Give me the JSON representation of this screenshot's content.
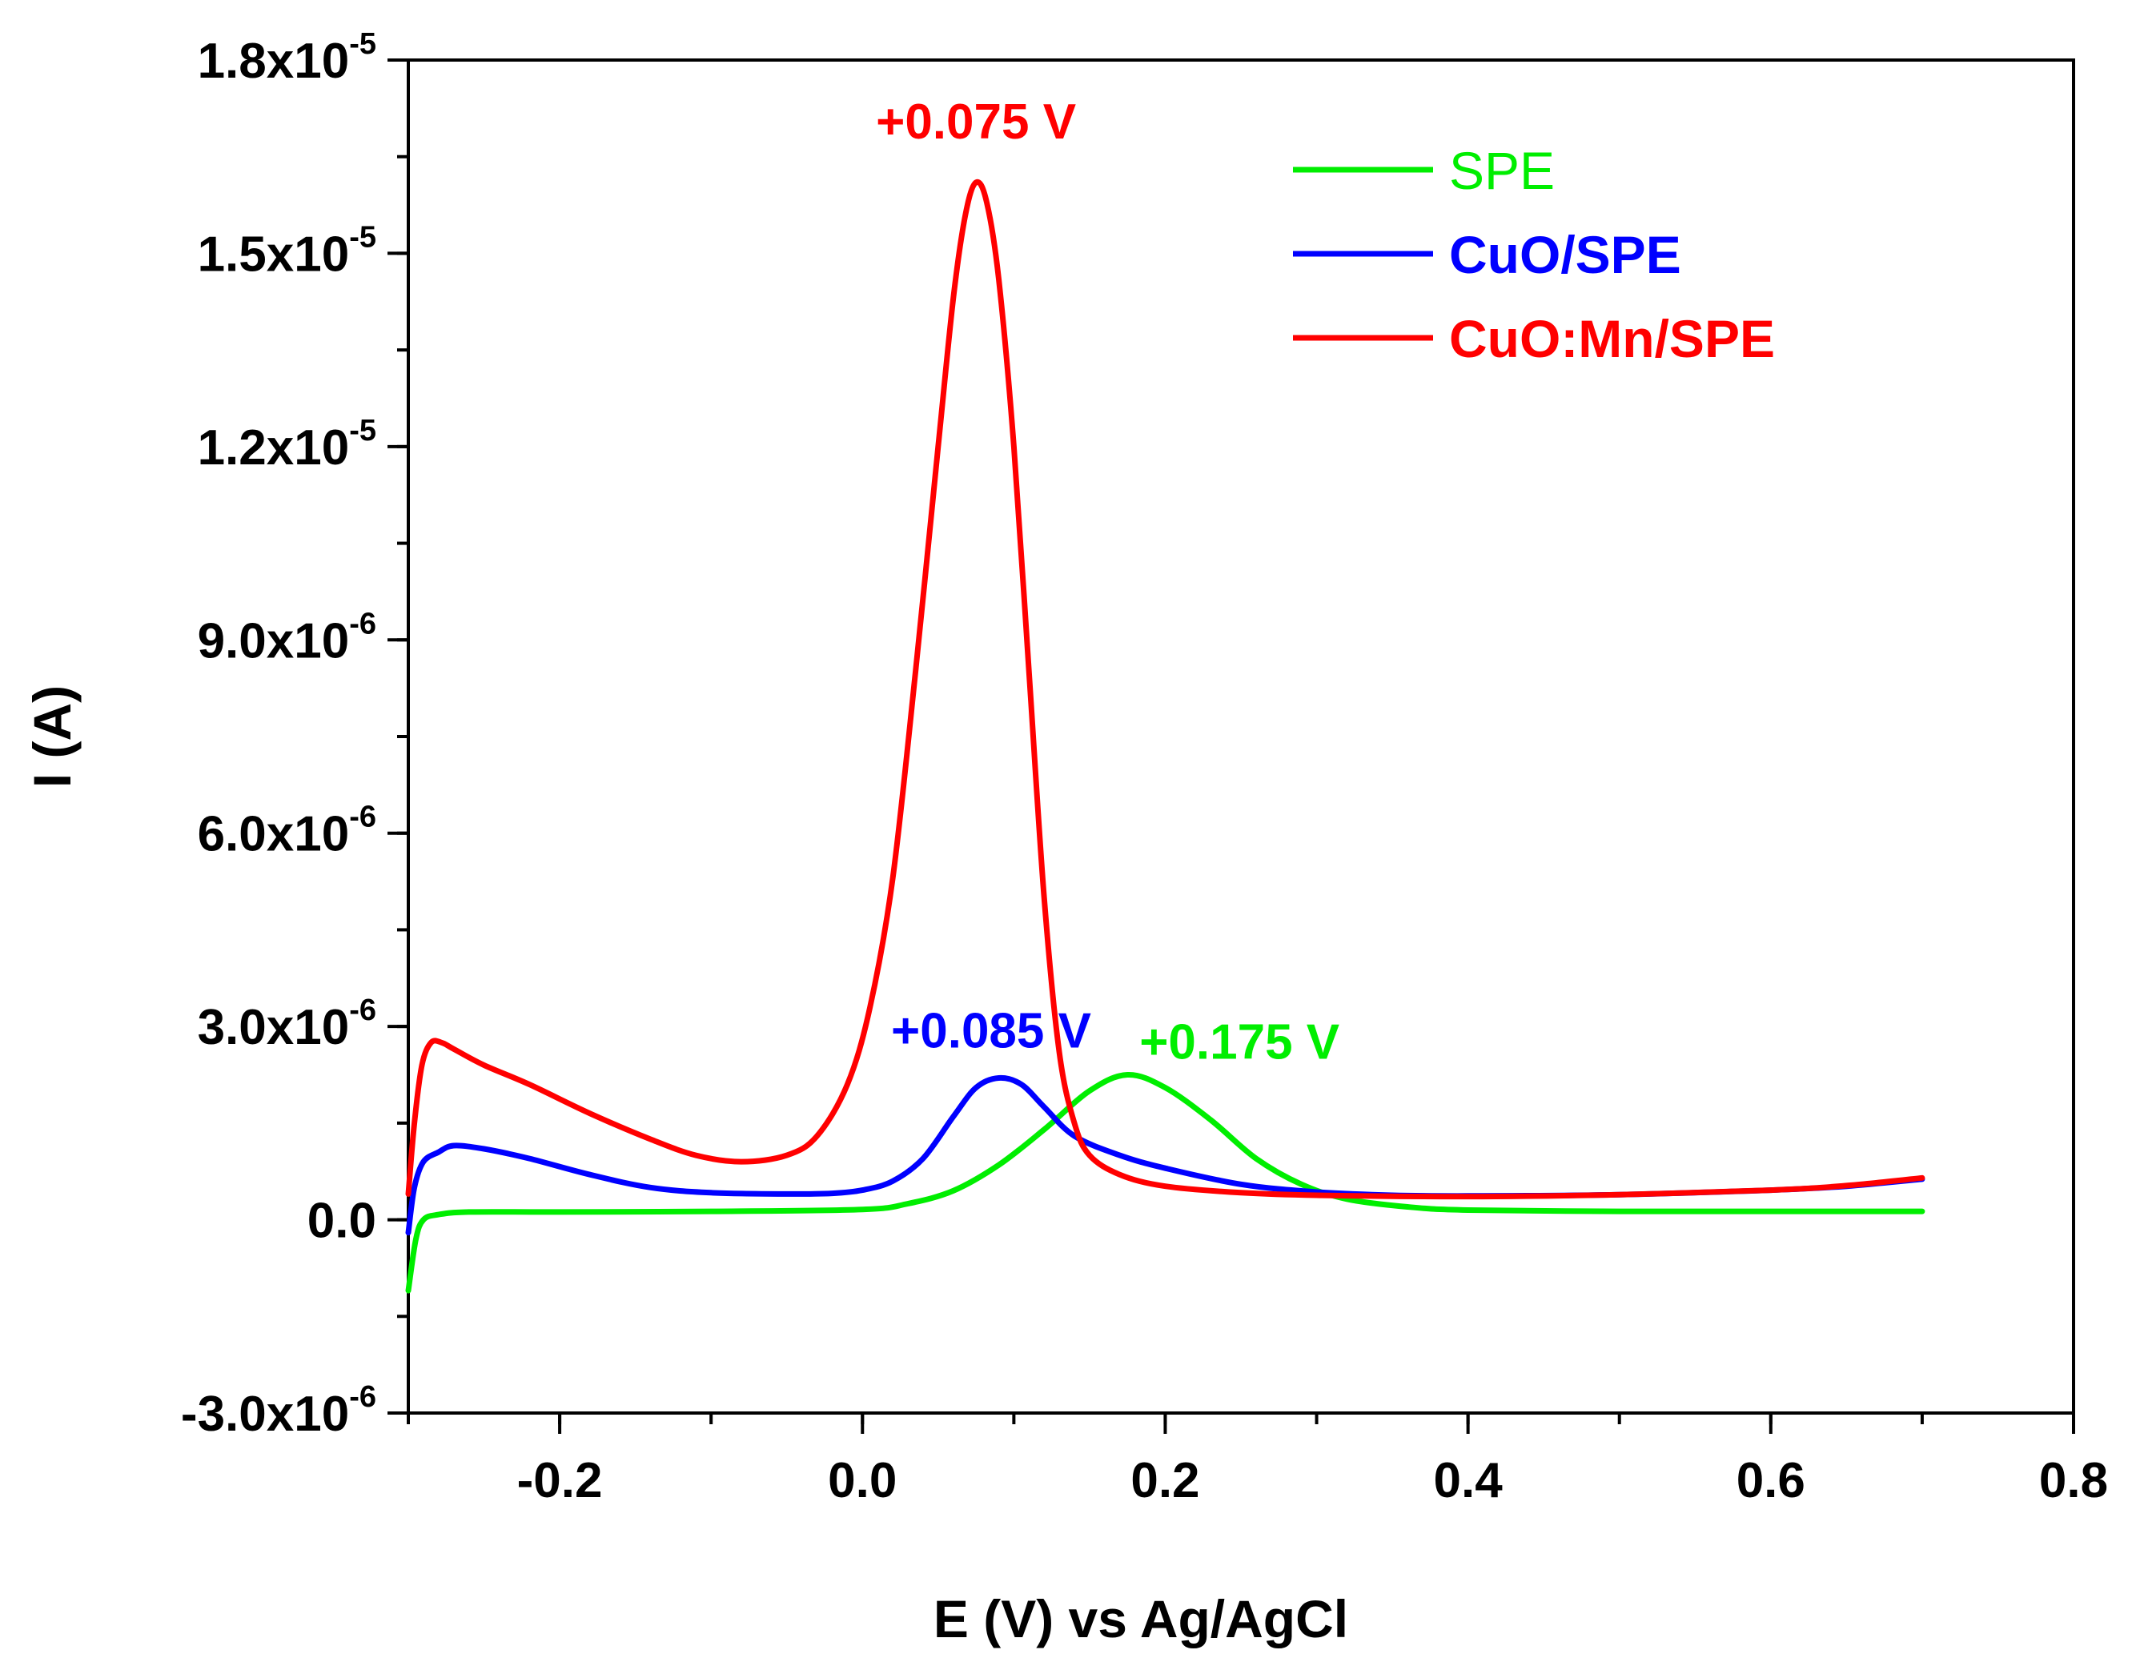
{
  "chart_data": {
    "type": "line",
    "title": "",
    "xlabel": "E (V) vs Ag/AgCl",
    "ylabel": "I (A)",
    "xlim": [
      -0.3,
      0.8
    ],
    "ylim": [
      -3e-06,
      1.8e-05
    ],
    "x_ticks": [
      {
        "value": -0.2,
        "label": "-0.2"
      },
      {
        "value": 0.0,
        "label": "0.0"
      },
      {
        "value": 0.2,
        "label": "0.2"
      },
      {
        "value": 0.4,
        "label": "0.4"
      },
      {
        "value": 0.6,
        "label": "0.6"
      },
      {
        "value": 0.8,
        "label": "0.8"
      }
    ],
    "y_ticks": [
      {
        "value": -3e-06,
        "mantissa": "-3.0x10",
        "exponent": "-6"
      },
      {
        "value": 0.0,
        "mantissa": "0.0",
        "exponent": ""
      },
      {
        "value": 3e-06,
        "mantissa": "3.0x10",
        "exponent": "-6"
      },
      {
        "value": 6e-06,
        "mantissa": "6.0x10",
        "exponent": "-6"
      },
      {
        "value": 9e-06,
        "mantissa": "9.0x10",
        "exponent": "-6"
      },
      {
        "value": 1.2e-05,
        "mantissa": "1.2x10",
        "exponent": "-5"
      },
      {
        "value": 1.5e-05,
        "mantissa": "1.5x10",
        "exponent": "-5"
      },
      {
        "value": 1.8e-05,
        "mantissa": "1.8x10",
        "exponent": "-5"
      }
    ],
    "legend_position": "top-right",
    "series": [
      {
        "name": "SPE",
        "color": "#00ee00",
        "points": [
          [
            -0.3,
            -1.1e-06
          ],
          [
            -0.295,
            -3e-07
          ],
          [
            -0.29,
            0.0
          ],
          [
            -0.28,
            8e-08
          ],
          [
            -0.26,
            1.2e-07
          ],
          [
            -0.2,
            1.2e-07
          ],
          [
            -0.1,
            1.3e-07
          ],
          [
            0.0,
            1.6e-07
          ],
          [
            0.03,
            2.5e-07
          ],
          [
            0.06,
            4.5e-07
          ],
          [
            0.09,
            8.5e-07
          ],
          [
            0.12,
            1.4e-06
          ],
          [
            0.15,
            2e-06
          ],
          [
            0.175,
            2.25e-06
          ],
          [
            0.2,
            2.05e-06
          ],
          [
            0.23,
            1.55e-06
          ],
          [
            0.26,
            9.5e-07
          ],
          [
            0.29,
            5.5e-07
          ],
          [
            0.32,
            3.2e-07
          ],
          [
            0.36,
            2e-07
          ],
          [
            0.4,
            1.5e-07
          ],
          [
            0.5,
            1.3e-07
          ],
          [
            0.6,
            1.3e-07
          ],
          [
            0.7,
            1.3e-07
          ]
        ]
      },
      {
        "name": "CuO/SPE",
        "color": "#0000ff",
        "points": [
          [
            -0.3,
            -2e-07
          ],
          [
            -0.296,
            5e-07
          ],
          [
            -0.29,
            9e-07
          ],
          [
            -0.28,
            1.05e-06
          ],
          [
            -0.27,
            1.15e-06
          ],
          [
            -0.25,
            1.1e-06
          ],
          [
            -0.22,
            9.5e-07
          ],
          [
            -0.18,
            7e-07
          ],
          [
            -0.14,
            5e-07
          ],
          [
            -0.1,
            4.2e-07
          ],
          [
            -0.05,
            4e-07
          ],
          [
            -0.02,
            4.1e-07
          ],
          [
            0.0,
            4.6e-07
          ],
          [
            0.02,
            6e-07
          ],
          [
            0.04,
            9.5e-07
          ],
          [
            0.06,
            1.6e-06
          ],
          [
            0.075,
            2.05e-06
          ],
          [
            0.09,
            2.2e-06
          ],
          [
            0.105,
            2.1e-06
          ],
          [
            0.12,
            1.75e-06
          ],
          [
            0.14,
            1.3e-06
          ],
          [
            0.17,
            1e-06
          ],
          [
            0.2,
            8e-07
          ],
          [
            0.25,
            5.5e-07
          ],
          [
            0.3,
            4.3e-07
          ],
          [
            0.35,
            3.8e-07
          ],
          [
            0.4,
            3.7e-07
          ],
          [
            0.5,
            3.9e-07
          ],
          [
            0.6,
            4.6e-07
          ],
          [
            0.65,
            5.2e-07
          ],
          [
            0.7,
            6.3e-07
          ]
        ]
      },
      {
        "name": "CuO:Mn/SPE",
        "color": "#ff0000",
        "points": [
          [
            -0.3,
            4e-07
          ],
          [
            -0.296,
            1.5e-06
          ],
          [
            -0.291,
            2.4e-06
          ],
          [
            -0.285,
            2.75e-06
          ],
          [
            -0.278,
            2.75e-06
          ],
          [
            -0.27,
            2.65e-06
          ],
          [
            -0.25,
            2.4e-06
          ],
          [
            -0.22,
            2.1e-06
          ],
          [
            -0.18,
            1.65e-06
          ],
          [
            -0.14,
            1.25e-06
          ],
          [
            -0.11,
            1e-06
          ],
          [
            -0.08,
            9e-07
          ],
          [
            -0.05,
            1e-06
          ],
          [
            -0.03,
            1.3e-06
          ],
          [
            -0.01,
            2.1e-06
          ],
          [
            0.005,
            3.3e-06
          ],
          [
            0.02,
            5.3e-06
          ],
          [
            0.035,
            8.5e-06
          ],
          [
            0.05,
            1.2e-05
          ],
          [
            0.06,
            1.43e-05
          ],
          [
            0.068,
            1.56e-05
          ],
          [
            0.075,
            1.61e-05
          ],
          [
            0.082,
            1.58e-05
          ],
          [
            0.09,
            1.46e-05
          ],
          [
            0.1,
            1.2e-05
          ],
          [
            0.11,
            8.5e-06
          ],
          [
            0.12,
            5e-06
          ],
          [
            0.13,
            2.6e-06
          ],
          [
            0.14,
            1.5e-06
          ],
          [
            0.15,
            1e-06
          ],
          [
            0.17,
            7e-07
          ],
          [
            0.2,
            5.2e-07
          ],
          [
            0.25,
            4.2e-07
          ],
          [
            0.3,
            3.8e-07
          ],
          [
            0.4,
            3.6e-07
          ],
          [
            0.5,
            3.9e-07
          ],
          [
            0.6,
            4.6e-07
          ],
          [
            0.65,
            5.3e-07
          ],
          [
            0.7,
            6.5e-07
          ]
        ]
      }
    ],
    "annotations": [
      {
        "text": "+0.075 V",
        "x": 0.075,
        "y": 1.61e-05,
        "color": "#ff0000"
      },
      {
        "text": "+0.085 V",
        "x": 0.085,
        "y": 2.2e-06,
        "color": "#0000ff"
      },
      {
        "text": "+0.175 V",
        "x": 0.175,
        "y": 2.25e-06,
        "color": "#00ee00"
      }
    ]
  }
}
